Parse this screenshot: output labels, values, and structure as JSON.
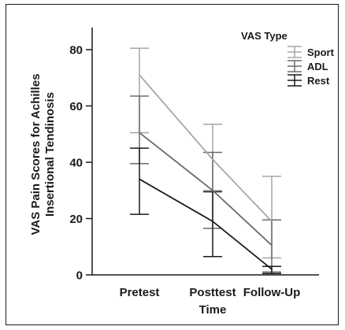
{
  "chart_data": {
    "type": "line",
    "title": "",
    "xlabel": "Time",
    "ylabel": "VAS Pain Scores for Achilles Insertional Tendinosis",
    "ylabel_lines": [
      "VAS Pain Scores for Achilles",
      "Insertional Tendinosis"
    ],
    "categories": [
      "Pretest",
      "Posttest",
      "Follow-Up"
    ],
    "ylim": [
      0,
      80
    ],
    "yticks": [
      0,
      20,
      40,
      60,
      80
    ],
    "grid": false,
    "legend": {
      "title": "VAS Type",
      "placement": "top-right"
    },
    "series": [
      {
        "name": "Sport",
        "color": "#a6a6a6",
        "values": [
          71,
          41,
          19
        ],
        "err_low": [
          50.5,
          30,
          6
        ],
        "err_high": [
          80.5,
          53.5,
          35
        ]
      },
      {
        "name": "ADL",
        "color": "#6b6b6b",
        "values": [
          50.5,
          30,
          10.5
        ],
        "err_low": [
          39.5,
          16.5,
          1
        ],
        "err_high": [
          63.5,
          43.5,
          19.5
        ]
      },
      {
        "name": "Rest",
        "color": "#1a1a1a",
        "values": [
          34,
          19,
          2
        ],
        "err_low": [
          21.5,
          6.5,
          0.5
        ],
        "err_high": [
          45,
          29.5,
          3
        ]
      }
    ]
  }
}
